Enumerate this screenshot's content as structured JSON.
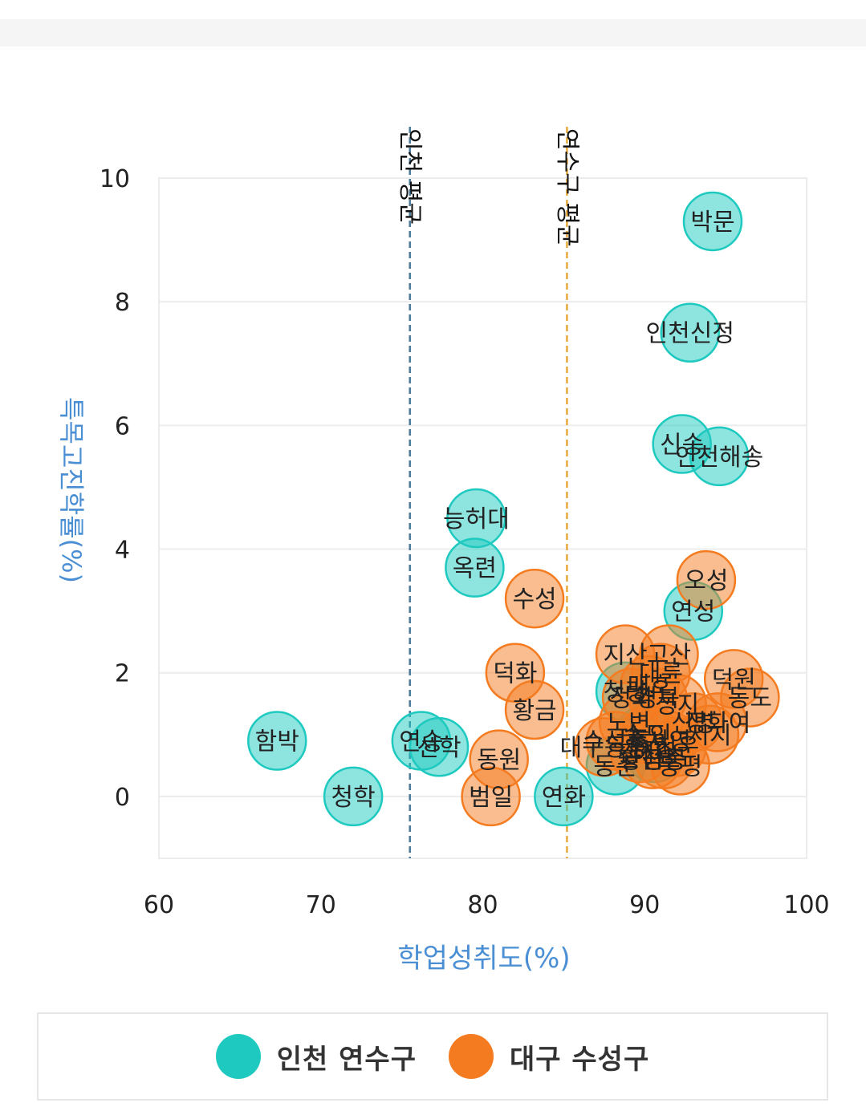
{
  "chart_data": {
    "type": "scatter",
    "xlabel": "학업성취도(%)",
    "ylabel": "특목고진학률(%)",
    "xlim": [
      60,
      100
    ],
    "ylim": [
      -1,
      10
    ],
    "x_ticks": [
      "60",
      "70",
      "80",
      "90",
      "100"
    ],
    "y_ticks": [
      "0",
      "2",
      "4",
      "6",
      "8",
      "10"
    ],
    "reference_lines": [
      {
        "label": "인천 평균",
        "x": 75.5,
        "color": "#4a7a99"
      },
      {
        "label": "연수구 평균",
        "x": 85.2,
        "color": "#e8a83c"
      }
    ],
    "series": [
      {
        "name": "인천 연수구",
        "color": "#1ec9bf",
        "points": [
          {
            "label": "박문",
            "x": 94.2,
            "y": 9.3
          },
          {
            "label": "인천신정",
            "x": 92.8,
            "y": 7.5
          },
          {
            "label": "신송",
            "x": 92.3,
            "y": 5.7
          },
          {
            "label": "인천해송",
            "x": 94.6,
            "y": 5.5
          },
          {
            "label": "능허대",
            "x": 79.6,
            "y": 4.5
          },
          {
            "label": "옥련",
            "x": 79.5,
            "y": 3.7
          },
          {
            "label": "연성",
            "x": 93.0,
            "y": 3.0
          },
          {
            "label": "함박",
            "x": 67.3,
            "y": 0.9
          },
          {
            "label": "청학",
            "x": 72.0,
            "y": 0.0
          },
          {
            "label": "연송",
            "x": 76.2,
            "y": 0.9
          },
          {
            "label": "선학",
            "x": 77.3,
            "y": 0.8
          },
          {
            "label": "연화",
            "x": 85.0,
            "y": 0.0
          },
          {
            "label": "동춘",
            "x": 88.2,
            "y": 0.5
          },
          {
            "label": "청량",
            "x": 88.8,
            "y": 1.7
          },
          {
            "label": "송도",
            "x": 90.0,
            "y": 1.0
          },
          {
            "label": "해송",
            "x": 90.6,
            "y": 0.7
          }
        ]
      },
      {
        "name": "대구 수성구",
        "color": "#f47b20",
        "points": [
          {
            "label": "오성",
            "x": 93.8,
            "y": 3.5
          },
          {
            "label": "수성",
            "x": 83.2,
            "y": 3.2
          },
          {
            "label": "덕화",
            "x": 82.0,
            "y": 2.0
          },
          {
            "label": "황금",
            "x": 83.2,
            "y": 1.4
          },
          {
            "label": "동원",
            "x": 81.0,
            "y": 0.6
          },
          {
            "label": "범일",
            "x": 80.5,
            "y": 0.0
          },
          {
            "label": "지산",
            "x": 88.8,
            "y": 2.3
          },
          {
            "label": "고산",
            "x": 91.5,
            "y": 2.3
          },
          {
            "label": "대륜",
            "x": 91.0,
            "y": 2.0
          },
          {
            "label": "덕원",
            "x": 95.5,
            "y": 1.9
          },
          {
            "label": "동도",
            "x": 96.5,
            "y": 1.6
          },
          {
            "label": "매호",
            "x": 90.3,
            "y": 1.8
          },
          {
            "label": "경북",
            "x": 90.8,
            "y": 1.6
          },
          {
            "label": "정화",
            "x": 89.2,
            "y": 1.6
          },
          {
            "label": "성지",
            "x": 92.0,
            "y": 1.5
          },
          {
            "label": "신명",
            "x": 93.0,
            "y": 1.2
          },
          {
            "label": "정화여",
            "x": 94.5,
            "y": 1.2
          },
          {
            "label": "시지",
            "x": 94.0,
            "y": 1.0
          },
          {
            "label": "노변",
            "x": 89.0,
            "y": 1.2
          },
          {
            "label": "능인",
            "x": 90.3,
            "y": 1.0
          },
          {
            "label": "대구동중",
            "x": 87.5,
            "y": 0.8
          },
          {
            "label": "수성중",
            "x": 88.2,
            "y": 0.9
          },
          {
            "label": "경신",
            "x": 89.7,
            "y": 0.7
          },
          {
            "label": "서영",
            "x": 91.5,
            "y": 0.9
          },
          {
            "label": "청운",
            "x": 92.0,
            "y": 0.8
          },
          {
            "label": "황금중",
            "x": 90.5,
            "y": 0.6
          },
          {
            "label": "정동",
            "x": 91.2,
            "y": 0.6
          },
          {
            "label": "동평",
            "x": 92.2,
            "y": 0.5
          }
        ]
      }
    ]
  },
  "legend": {
    "items": [
      {
        "label": "인천 연수구",
        "color": "#1ec9bf"
      },
      {
        "label": "대구 수성구",
        "color": "#f47b20"
      }
    ]
  }
}
